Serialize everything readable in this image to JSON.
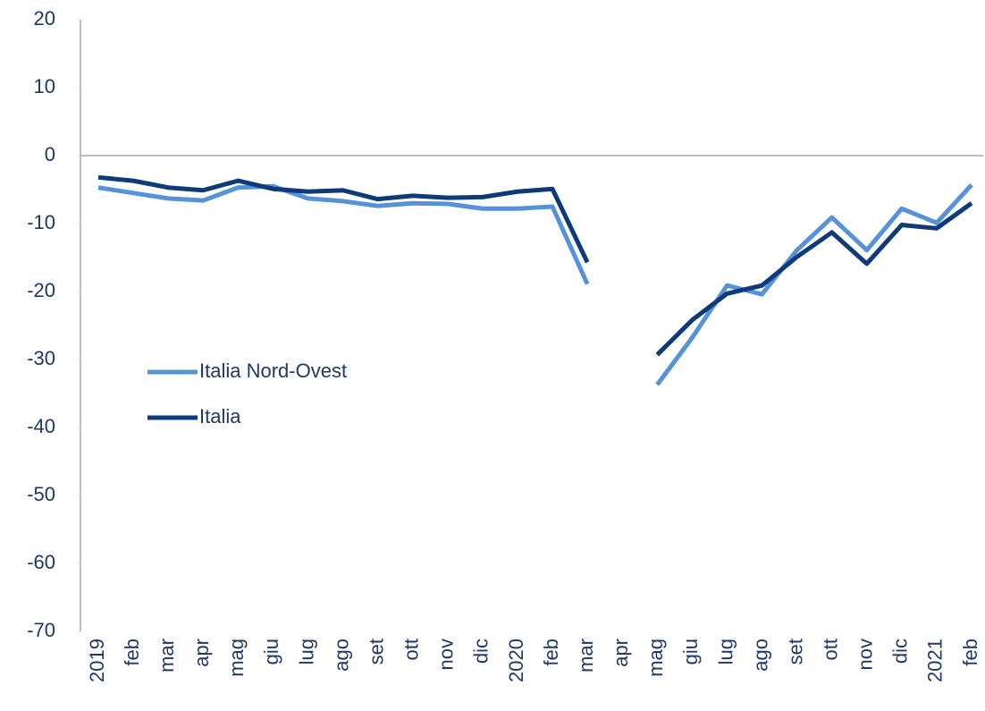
{
  "chart_data": {
    "type": "line",
    "categories": [
      "2019",
      "feb",
      "mar",
      "apr",
      "mag",
      "giu",
      "lug",
      "ago",
      "set",
      "ott",
      "nov",
      "dic",
      "2020",
      "feb",
      "mar",
      "apr",
      "mag",
      "giu",
      "lug",
      "ago",
      "set",
      "ott",
      "nov",
      "dic",
      "2021",
      "feb"
    ],
    "series": [
      {
        "name": "Italia Nord-Ovest",
        "color": "#5592d8",
        "values": [
          -4.7,
          -5.5,
          -6.3,
          -6.6,
          -4.7,
          -4.5,
          -6.3,
          -6.7,
          -7.4,
          -7.0,
          -7.1,
          -7.8,
          -7.8,
          -7.5,
          -18.9,
          null,
          -33.7,
          -26.8,
          -19.1,
          -20.4,
          -13.9,
          -9.1,
          -13.9,
          -7.8,
          -9.9,
          -4.3
        ]
      },
      {
        "name": "Italia",
        "color": "#0d3a78",
        "values": [
          -3.2,
          -3.7,
          -4.7,
          -5.1,
          -3.7,
          -4.9,
          -5.3,
          -5.1,
          -6.4,
          -5.9,
          -6.2,
          -6.1,
          -5.3,
          -4.9,
          -15.7,
          null,
          -29.3,
          -24.2,
          -20.3,
          -19.1,
          -14.9,
          -11.3,
          -15.9,
          -10.2,
          -10.7,
          -7.0
        ]
      }
    ],
    "ylim": [
      -70,
      20
    ],
    "yticks": [
      -70,
      -60,
      -50,
      -40,
      -30,
      -20,
      -10,
      0,
      10,
      20
    ],
    "grid": false,
    "legend": "center-left"
  }
}
